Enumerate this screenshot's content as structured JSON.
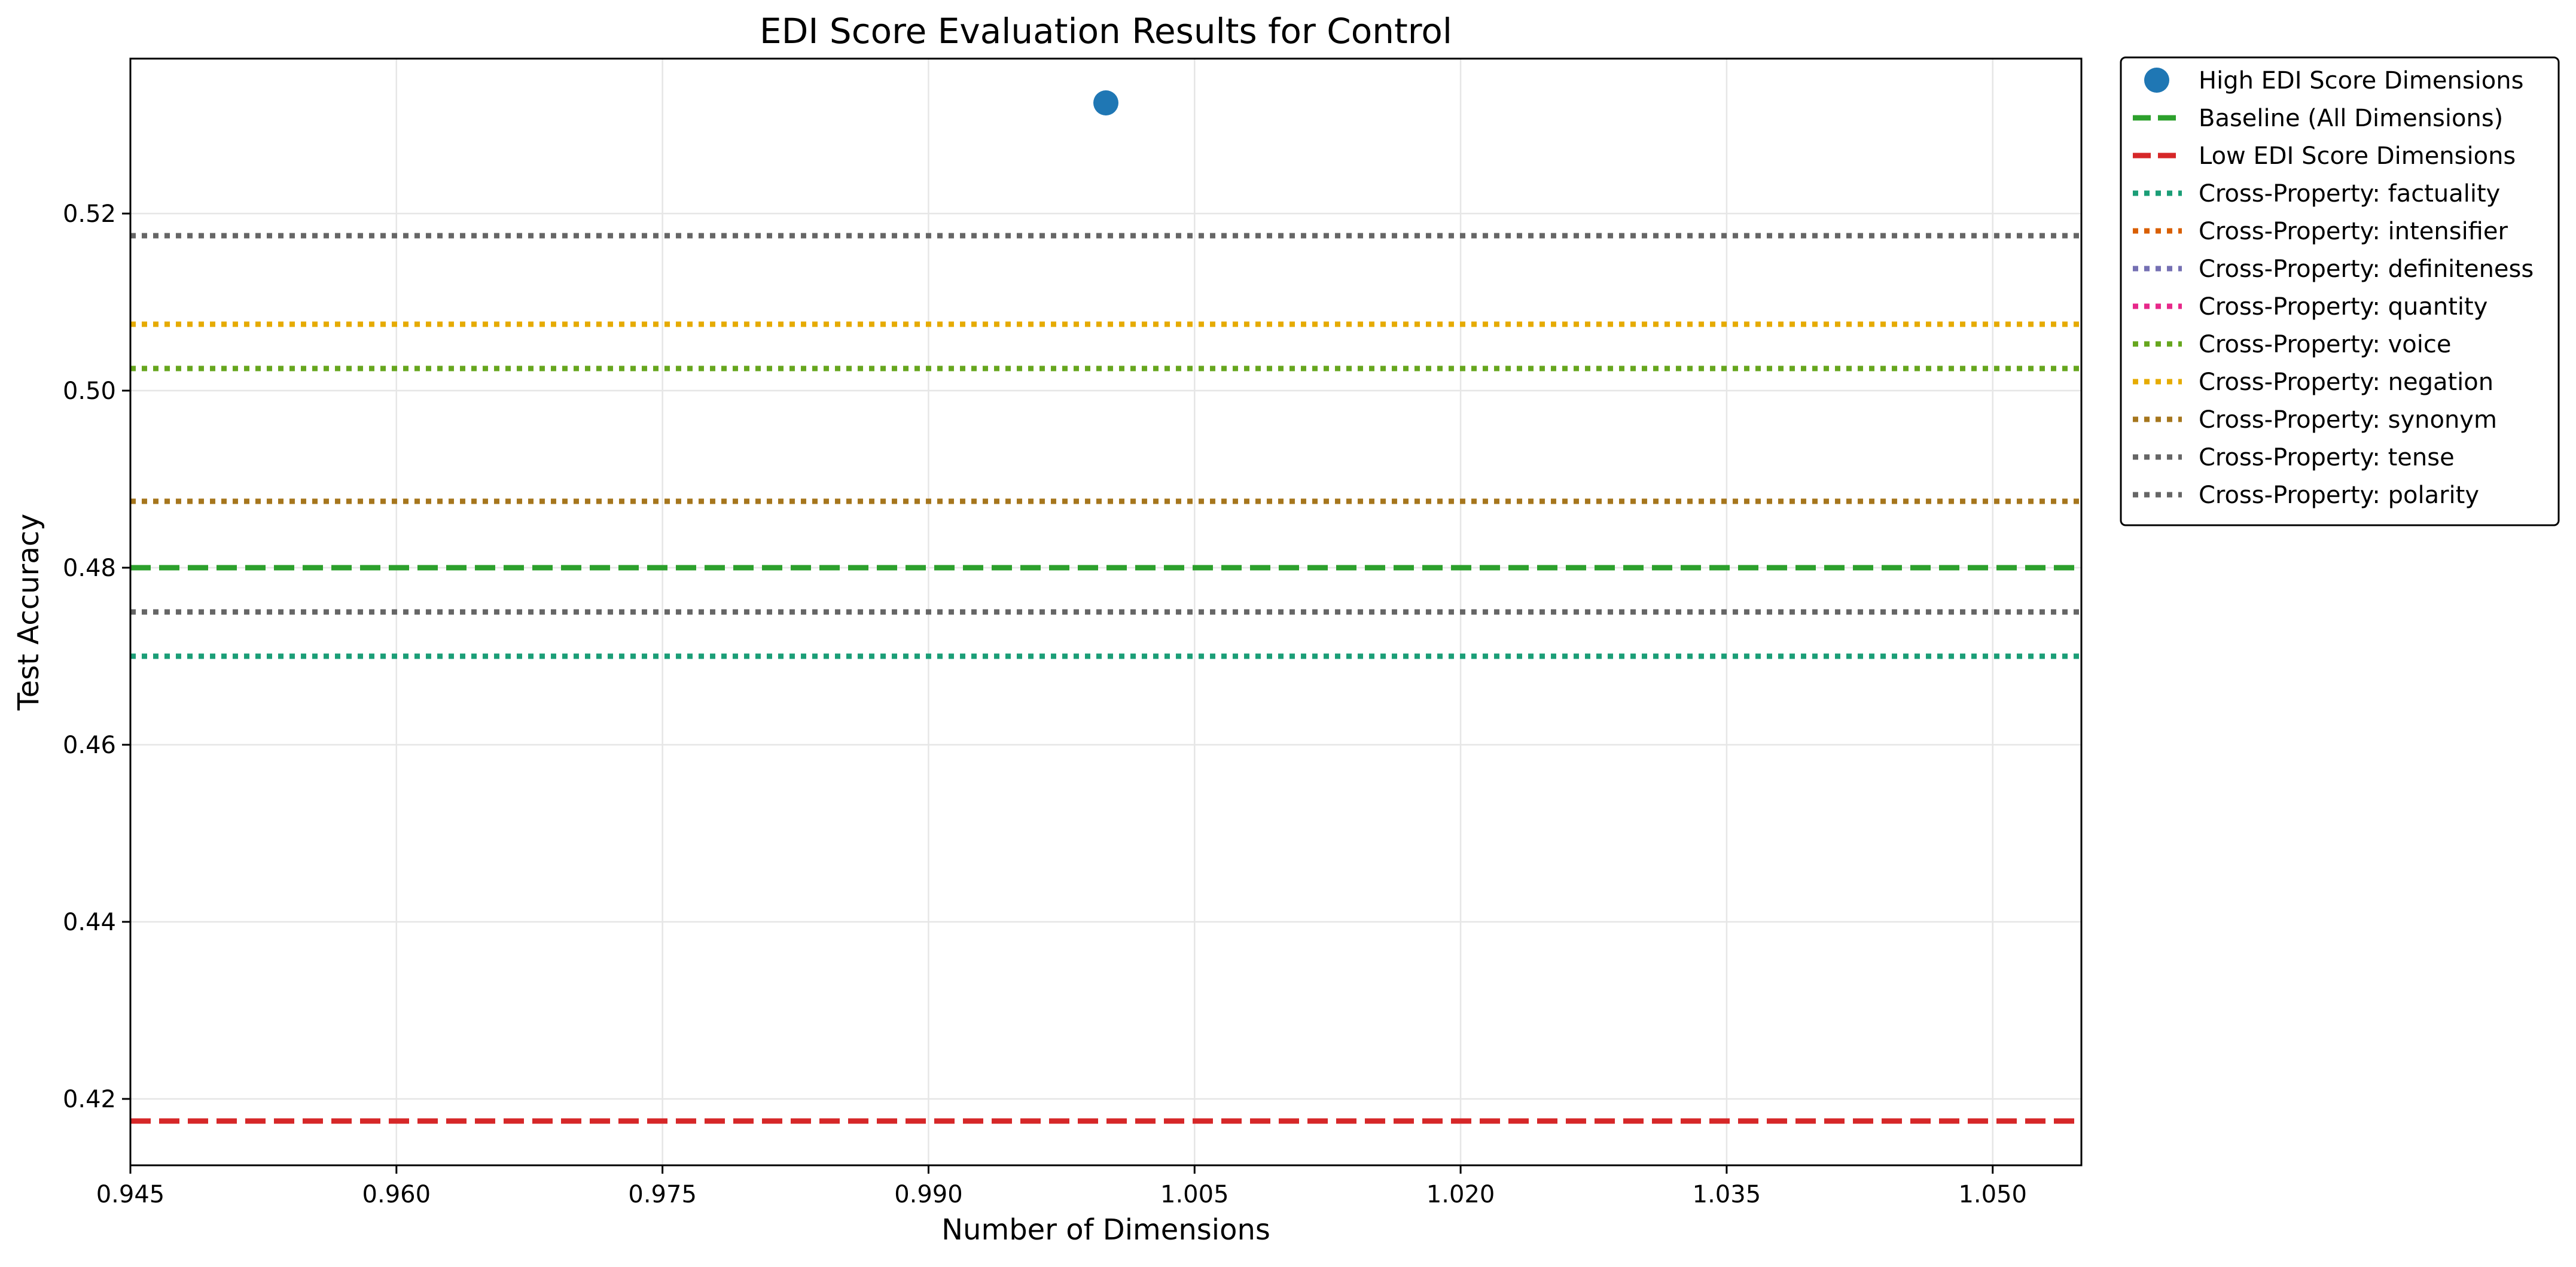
{
  "chart_data": {
    "type": "line",
    "title": "EDI Score Evaluation Results for Control",
    "xlabel": "Number of Dimensions",
    "ylabel": "Test Accuracy",
    "xlim": [
      0.945,
      1.055
    ],
    "ylim": [
      0.4125,
      0.5375
    ],
    "x_ticks": [
      0.945,
      0.96,
      0.975,
      0.99,
      1.005,
      1.02,
      1.035,
      1.05
    ],
    "x_tick_labels": [
      "0.945",
      "0.960",
      "0.975",
      "0.990",
      "1.005",
      "1.020",
      "1.035",
      "1.050"
    ],
    "y_ticks": [
      0.42,
      0.44,
      0.46,
      0.48,
      0.5,
      0.52
    ],
    "y_tick_labels": [
      "0.42",
      "0.44",
      "0.46",
      "0.48",
      "0.50",
      "0.52"
    ],
    "grid": true,
    "legend_position": "outside-right-top",
    "points": [
      {
        "name": "High EDI Score Dimensions",
        "x": 1.0,
        "y": 0.5325,
        "color": "#1f77b4"
      }
    ],
    "hlines": [
      {
        "name": "Baseline (All Dimensions)",
        "y": 0.48,
        "color": "#2ca02c",
        "style": "dashed"
      },
      {
        "name": "Low EDI Score Dimensions",
        "y": 0.4175,
        "color": "#d62728",
        "style": "dashed"
      },
      {
        "name": "Cross-Property: factuality",
        "y": 0.47,
        "color": "#1b9e77",
        "style": "dotted"
      },
      {
        "name": "Cross-Property: intensifier",
        "y": 0.4875,
        "color": "#d95f02",
        "style": "dotted"
      },
      {
        "name": "Cross-Property: definiteness",
        "y": 0.4875,
        "color": "#7570b3",
        "style": "dotted"
      },
      {
        "name": "Cross-Property: quantity",
        "y": 0.4875,
        "color": "#e7298a",
        "style": "dotted"
      },
      {
        "name": "Cross-Property: voice",
        "y": 0.5025,
        "color": "#66a61e",
        "style": "dotted"
      },
      {
        "name": "Cross-Property: negation",
        "y": 0.5075,
        "color": "#e6ab02",
        "style": "dotted"
      },
      {
        "name": "Cross-Property: synonym",
        "y": 0.4875,
        "color": "#a6761d",
        "style": "dotted"
      },
      {
        "name": "Cross-Property: tense",
        "y": 0.475,
        "color": "#666666",
        "style": "dotted"
      },
      {
        "name": "Cross-Property: polarity",
        "y": 0.5175,
        "color": "#666666",
        "style": "dotted"
      }
    ]
  }
}
